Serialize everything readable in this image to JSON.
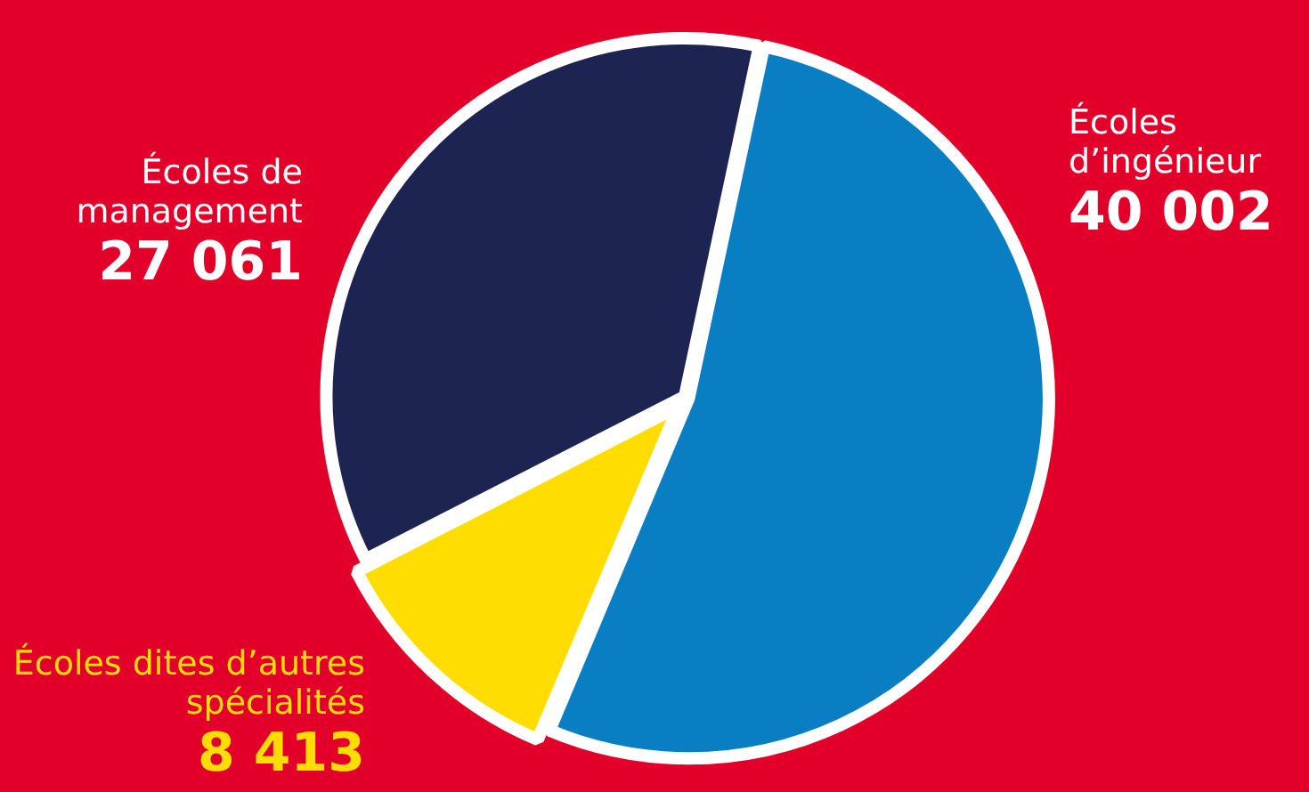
{
  "chart_data": {
    "type": "pie",
    "categories": [
      "Écoles d’ingénieur",
      "Écoles dites d’autres spécialités",
      "Écoles de management"
    ],
    "values": [
      40002,
      8413,
      27061
    ],
    "value_labels": [
      "40 002",
      "8 413",
      "27 061"
    ],
    "colors": [
      "#0a7ec3",
      "#ffdd00",
      "#1e2452"
    ],
    "legend": false
  }
}
